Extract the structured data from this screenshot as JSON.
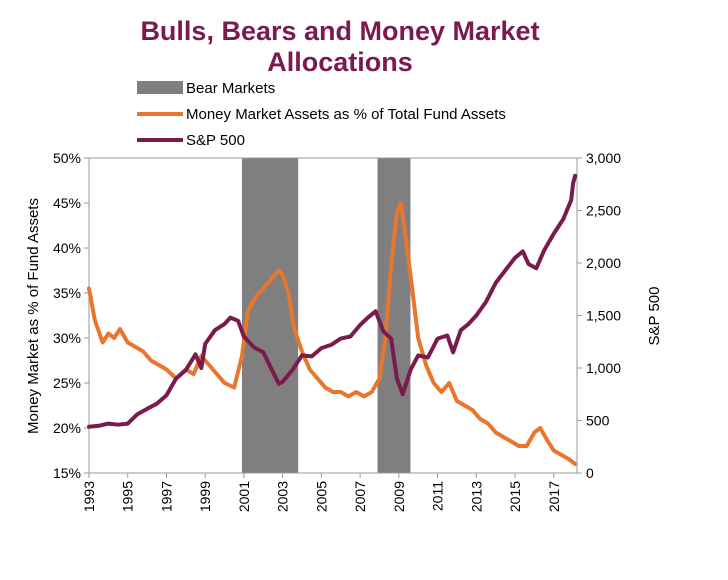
{
  "chart_data": {
    "type": "line",
    "title": "Bulls, Bears and Money Market Allocations",
    "ylabel_left": "Money Market as % of Fund Assets",
    "ylabel_right": "S&P 500",
    "xlim": [
      1993,
      2018.2
    ],
    "ylim_left": [
      15,
      50
    ],
    "ylim_right": [
      0,
      3000
    ],
    "x_ticks": [
      1993,
      1995,
      1997,
      1999,
      2001,
      2003,
      2005,
      2007,
      2009,
      2011,
      2013,
      2015,
      2017
    ],
    "x_tick_labels": [
      "1993",
      "1995",
      "1997",
      "1999",
      "2001",
      "2003",
      "2005",
      "2007",
      "2009",
      "2011",
      "2013",
      "2015",
      "2017"
    ],
    "y_left_ticks": [
      15,
      20,
      25,
      30,
      35,
      40,
      45,
      50
    ],
    "y_left_tick_labels": [
      "15%",
      "20%",
      "25%",
      "30%",
      "35%",
      "40%",
      "45%",
      "50%"
    ],
    "y_right_ticks": [
      0,
      500,
      1000,
      1500,
      2000,
      2500,
      3000
    ],
    "y_right_tick_labels": [
      "0",
      "500",
      "1,000",
      "1,500",
      "2,000",
      "2,500",
      "3,000"
    ],
    "legend": [
      {
        "label": "Bear Markets",
        "type": "bar",
        "color": "#7f7f7f"
      },
      {
        "label": "Money Market Assets as % of Total Fund Assets",
        "type": "line",
        "color": "#e8762c"
      },
      {
        "label": "S&P 500",
        "type": "line",
        "color": "#7a1a4d"
      }
    ],
    "bear_markets": [
      {
        "start": 2000.9,
        "end": 2003.8
      },
      {
        "start": 2007.9,
        "end": 2009.6
      }
    ],
    "series": [
      {
        "name": "Money Market Assets as % of Total Fund Assets",
        "axis": "left",
        "color": "#e8762c",
        "x": [
          1993.0,
          1993.3,
          1993.7,
          1994.0,
          1994.3,
          1994.6,
          1995.0,
          1995.4,
          1995.8,
          1996.2,
          1996.6,
          1997.0,
          1997.5,
          1998.0,
          1998.4,
          1998.8,
          1999.2,
          1999.6,
          2000.0,
          2000.5,
          2000.9,
          2001.2,
          2001.6,
          2002.0,
          2002.4,
          2002.8,
          2003.0,
          2003.3,
          2003.6,
          2004.0,
          2004.4,
          2004.8,
          2005.2,
          2005.6,
          2006.0,
          2006.4,
          2006.8,
          2007.2,
          2007.6,
          2008.0,
          2008.3,
          2008.6,
          2008.9,
          2009.1,
          2009.3,
          2009.6,
          2010.0,
          2010.4,
          2010.8,
          2011.2,
          2011.6,
          2012.0,
          2012.4,
          2012.8,
          2013.2,
          2013.6,
          2014.0,
          2014.4,
          2014.8,
          2015.2,
          2015.6,
          2016.0,
          2016.3,
          2016.7,
          2017.0,
          2017.4,
          2017.8,
          2018.1
        ],
        "values": [
          35.5,
          32.0,
          29.5,
          30.5,
          30.0,
          31.0,
          29.5,
          29.0,
          28.5,
          27.5,
          27.0,
          26.5,
          25.5,
          26.5,
          26.0,
          28.0,
          27.0,
          26.0,
          25.0,
          24.5,
          28.0,
          33.0,
          34.5,
          35.5,
          36.5,
          37.5,
          37.0,
          35.0,
          31.0,
          28.5,
          26.5,
          25.5,
          24.5,
          24.0,
          24.0,
          23.5,
          24.0,
          23.5,
          24.0,
          25.5,
          30.0,
          38.0,
          44.0,
          45.0,
          42.0,
          37.0,
          30.0,
          27.0,
          25.0,
          24.0,
          25.0,
          23.0,
          22.5,
          22.0,
          21.0,
          20.5,
          19.5,
          19.0,
          18.5,
          18.0,
          18.0,
          19.5,
          20.0,
          18.5,
          17.5,
          17.0,
          16.5,
          16.0
        ]
      },
      {
        "name": "S&P 500",
        "axis": "right",
        "color": "#7a1a4d",
        "x": [
          1993.0,
          1993.5,
          1994.0,
          1994.5,
          1995.0,
          1995.5,
          1996.0,
          1996.5,
          1997.0,
          1997.5,
          1998.0,
          1998.5,
          1998.8,
          1999.0,
          1999.5,
          2000.0,
          2000.3,
          2000.7,
          2001.0,
          2001.5,
          2002.0,
          2002.4,
          2002.8,
          2003.0,
          2003.5,
          2004.0,
          2004.5,
          2005.0,
          2005.5,
          2006.0,
          2006.5,
          2007.0,
          2007.4,
          2007.8,
          2008.2,
          2008.6,
          2008.9,
          2009.2,
          2009.6,
          2010.0,
          2010.5,
          2011.0,
          2011.5,
          2011.8,
          2012.2,
          2012.6,
          2013.0,
          2013.5,
          2014.0,
          2014.5,
          2015.0,
          2015.4,
          2015.7,
          2016.1,
          2016.5,
          2017.0,
          2017.5,
          2017.9,
          2018.0,
          2018.1
        ],
        "values": [
          440,
          450,
          470,
          460,
          470,
          560,
          610,
          660,
          740,
          900,
          980,
          1130,
          1000,
          1230,
          1360,
          1420,
          1480,
          1450,
          1300,
          1200,
          1150,
          1000,
          850,
          870,
          980,
          1120,
          1110,
          1190,
          1220,
          1280,
          1300,
          1410,
          1480,
          1540,
          1350,
          1280,
          900,
          750,
          980,
          1120,
          1100,
          1280,
          1310,
          1150,
          1360,
          1420,
          1500,
          1630,
          1810,
          1930,
          2050,
          2110,
          1990,
          1950,
          2120,
          2280,
          2420,
          2600,
          2760,
          2830
        ]
      }
    ]
  }
}
